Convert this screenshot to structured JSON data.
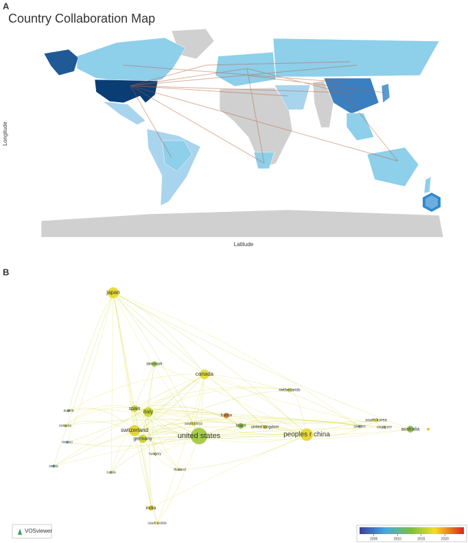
{
  "panel_a": {
    "label": "A",
    "title": "Country Collaboration Map",
    "y_axis_label": "Longitude",
    "x_axis_label": "Latitude"
  },
  "panel_b": {
    "label": "B",
    "nodes": [
      "japan",
      "denmark",
      "canada",
      "netherlands",
      "spain",
      "italy",
      "austria",
      "france",
      "south africa",
      "brazil",
      "united kingdom",
      "south korea",
      "sweden",
      "singapore",
      "australia",
      "romania",
      "switzerland",
      "united states",
      "peoples r china",
      "germany",
      "mexico",
      "hungary",
      "serbia",
      "thailand",
      "russia",
      "india",
      "saudi arabia"
    ],
    "brand": "VOSviewer",
    "color_scale": {
      "range": [
        2002,
        2024
      ],
      "ticks": [
        2005,
        2010,
        2015,
        2020
      ]
    }
  }
}
